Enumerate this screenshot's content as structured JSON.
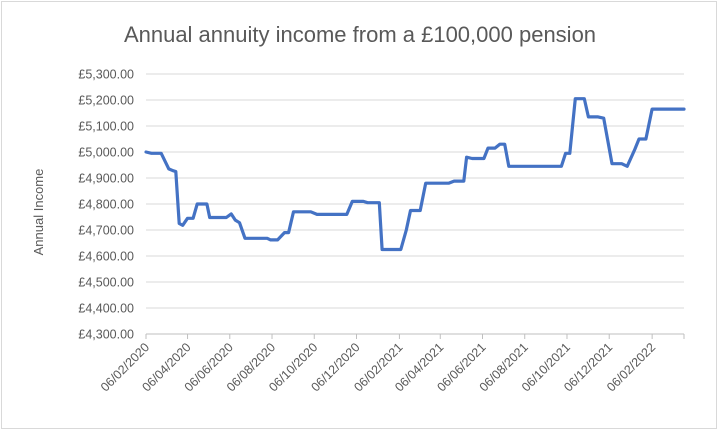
{
  "chart_data": {
    "type": "line",
    "title": "Annual annuity income from a £100,000 pension",
    "xlabel": "",
    "ylabel": "Annual Income",
    "ylim": [
      4300,
      5300
    ],
    "ytick_step": 100,
    "ytick_labels": [
      "£4,300.00",
      "£4,400.00",
      "£4,500.00",
      "£4,600.00",
      "£4,700.00",
      "£4,800.00",
      "£4,900.00",
      "£5,000.00",
      "£5,100.00",
      "£5,200.00",
      "£5,300.00"
    ],
    "xlim": [
      "2020-02-06",
      "2022-03-24"
    ],
    "x_tick_labels": [
      "06/02/2020",
      "06/04/2020",
      "06/06/2020",
      "06/08/2020",
      "06/10/2020",
      "06/12/2020",
      "06/02/2021",
      "06/04/2021",
      "06/06/2021",
      "06/08/2021",
      "06/10/2021",
      "06/12/2021",
      "06/02/2022"
    ],
    "x_tick_dates": [
      "2020-02-06",
      "2020-04-06",
      "2020-06-06",
      "2020-08-06",
      "2020-10-06",
      "2020-12-06",
      "2021-02-06",
      "2021-04-06",
      "2021-06-06",
      "2021-08-06",
      "2021-10-06",
      "2021-12-06",
      "2022-02-06"
    ],
    "grid": true,
    "legend": "none",
    "series_color": "#4472c4",
    "series": [
      {
        "points": [
          [
            "2020-02-06",
            5000
          ],
          [
            "2020-02-14",
            4995
          ],
          [
            "2020-02-28",
            4995
          ],
          [
            "2020-03-10",
            4935
          ],
          [
            "2020-03-16",
            4928
          ],
          [
            "2020-03-20",
            4925
          ],
          [
            "2020-03-25",
            4725
          ],
          [
            "2020-03-30",
            4718
          ],
          [
            "2020-04-06",
            4745
          ],
          [
            "2020-04-14",
            4745
          ],
          [
            "2020-04-20",
            4800
          ],
          [
            "2020-04-28",
            4800
          ],
          [
            "2020-05-04",
            4800
          ],
          [
            "2020-05-08",
            4748
          ],
          [
            "2020-05-15",
            4748
          ],
          [
            "2020-06-01",
            4748
          ],
          [
            "2020-06-08",
            4762
          ],
          [
            "2020-06-14",
            4738
          ],
          [
            "2020-06-20",
            4728
          ],
          [
            "2020-06-28",
            4668
          ],
          [
            "2020-07-20",
            4668
          ],
          [
            "2020-07-30",
            4668
          ],
          [
            "2020-08-04",
            4662
          ],
          [
            "2020-08-14",
            4662
          ],
          [
            "2020-08-24",
            4690
          ],
          [
            "2020-08-30",
            4690
          ],
          [
            "2020-09-06",
            4770
          ],
          [
            "2020-09-20",
            4770
          ],
          [
            "2020-10-01",
            4770
          ],
          [
            "2020-10-10",
            4760
          ],
          [
            "2020-11-01",
            4760
          ],
          [
            "2020-11-22",
            4760
          ],
          [
            "2020-11-30",
            4810
          ],
          [
            "2020-12-06",
            4810
          ],
          [
            "2020-12-16",
            4810
          ],
          [
            "2020-12-22",
            4805
          ],
          [
            "2021-01-01",
            4805
          ],
          [
            "2021-01-08",
            4805
          ],
          [
            "2021-01-12",
            4625
          ],
          [
            "2021-01-20",
            4625
          ],
          [
            "2021-02-01",
            4625
          ],
          [
            "2021-02-08",
            4625
          ],
          [
            "2021-02-16",
            4700
          ],
          [
            "2021-02-22",
            4775
          ],
          [
            "2021-03-08",
            4775
          ],
          [
            "2021-03-16",
            4880
          ],
          [
            "2021-03-22",
            4880
          ],
          [
            "2021-04-06",
            4880
          ],
          [
            "2021-04-18",
            4880
          ],
          [
            "2021-04-26",
            4888
          ],
          [
            "2021-05-10",
            4888
          ],
          [
            "2021-05-14",
            4980
          ],
          [
            "2021-05-22",
            4975
          ],
          [
            "2021-06-01",
            4975
          ],
          [
            "2021-06-08",
            4975
          ],
          [
            "2021-06-14",
            5015
          ],
          [
            "2021-06-24",
            5015
          ],
          [
            "2021-07-01",
            5030
          ],
          [
            "2021-07-08",
            5030
          ],
          [
            "2021-07-14",
            4945
          ],
          [
            "2021-08-01",
            4945
          ],
          [
            "2021-09-01",
            4945
          ],
          [
            "2021-09-28",
            4945
          ],
          [
            "2021-10-04",
            4995
          ],
          [
            "2021-10-10",
            4995
          ],
          [
            "2021-10-18",
            5205
          ],
          [
            "2021-10-31",
            5205
          ],
          [
            "2021-11-06",
            5135
          ],
          [
            "2021-11-20",
            5135
          ],
          [
            "2021-11-28",
            5130
          ],
          [
            "2021-12-10",
            4955
          ],
          [
            "2021-12-24",
            4955
          ],
          [
            "2022-01-01",
            4945
          ],
          [
            "2022-01-12",
            5010
          ],
          [
            "2022-01-18",
            5050
          ],
          [
            "2022-01-28",
            5050
          ],
          [
            "2022-02-06",
            5165
          ],
          [
            "2022-03-24",
            5165
          ]
        ]
      }
    ]
  }
}
